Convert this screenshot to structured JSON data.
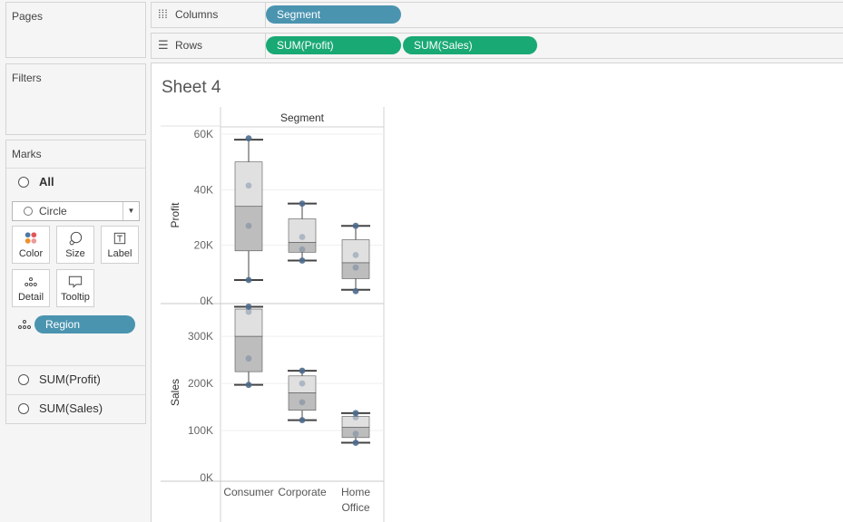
{
  "cards": {
    "pages": "Pages",
    "filters": "Filters",
    "marks": "Marks"
  },
  "marks": {
    "all_label": "All",
    "mark_type": "Circle",
    "buttons": [
      {
        "label": "Color",
        "icon": "color-icon"
      },
      {
        "label": "Size",
        "icon": "size-icon"
      },
      {
        "label": "Label",
        "icon": "label-icon"
      },
      {
        "label": "Detail",
        "icon": "detail-icon"
      },
      {
        "label": "Tooltip",
        "icon": "tooltip-icon"
      }
    ],
    "detail_pill": "Region",
    "measures": [
      "SUM(Profit)",
      "SUM(Sales)"
    ]
  },
  "shelves": {
    "columns_label": "Columns",
    "columns_pills": [
      "Segment"
    ],
    "rows_label": "Rows",
    "rows_pills": [
      "SUM(Profit)",
      "SUM(Sales)"
    ]
  },
  "colors": {
    "dimension_pill": "#4a94b0",
    "measure_pill": "#19a974",
    "point": "#4e6b8c",
    "box_dark": "#bdbdbd",
    "box_light": "#e0e0e0"
  },
  "sheet_title": "Sheet 4",
  "chart_data": {
    "type": "boxplot",
    "column_header": "Segment",
    "categories": [
      "Consumer",
      "Corporate",
      "Home Office"
    ],
    "category_tick_labels": [
      "Consumer",
      "Corporate",
      "Home\nOffice"
    ],
    "panels": [
      {
        "ylabel": "Profit",
        "ylim": [
          0,
          60000
        ],
        "ticks": [
          0,
          20000,
          40000,
          60000
        ],
        "tick_labels": [
          "0K",
          "20K",
          "40K",
          "60K"
        ],
        "boxes": [
          {
            "whisker_low": 7500,
            "q1": 18000,
            "median": 34000,
            "q3": 50000,
            "whisker_high": 58000
          },
          {
            "whisker_low": 14500,
            "q1": 17500,
            "median": 21000,
            "q3": 29500,
            "whisker_high": 35000
          },
          {
            "whisker_low": 4000,
            "q1": 8000,
            "median": 13700,
            "q3": 22000,
            "whisker_high": 27000
          }
        ],
        "points": [
          [
            7500,
            27000,
            41500,
            58500
          ],
          [
            14500,
            18500,
            23000,
            35000
          ],
          [
            3500,
            12000,
            16500,
            27000
          ]
        ]
      },
      {
        "ylabel": "Sales",
        "ylim": [
          0,
          360000
        ],
        "ticks": [
          0,
          100000,
          200000,
          300000
        ],
        "tick_labels": [
          "0K",
          "100K",
          "200K",
          "300K"
        ],
        "boxes": [
          {
            "whisker_low": 197000,
            "q1": 225000,
            "median": 300000,
            "q3": 358000,
            "whisker_high": 363000
          },
          {
            "whisker_low": 122000,
            "q1": 143000,
            "median": 180000,
            "q3": 216000,
            "whisker_high": 227000
          },
          {
            "whisker_low": 74000,
            "q1": 85000,
            "median": 107000,
            "q3": 130000,
            "whisker_high": 137000
          }
        ],
        "points": [
          [
            197000,
            253000,
            352000,
            363000
          ],
          [
            122000,
            160000,
            200000,
            227000
          ],
          [
            74000,
            93000,
            128000,
            137000
          ]
        ]
      }
    ],
    "grid": true,
    "legend": "none"
  }
}
